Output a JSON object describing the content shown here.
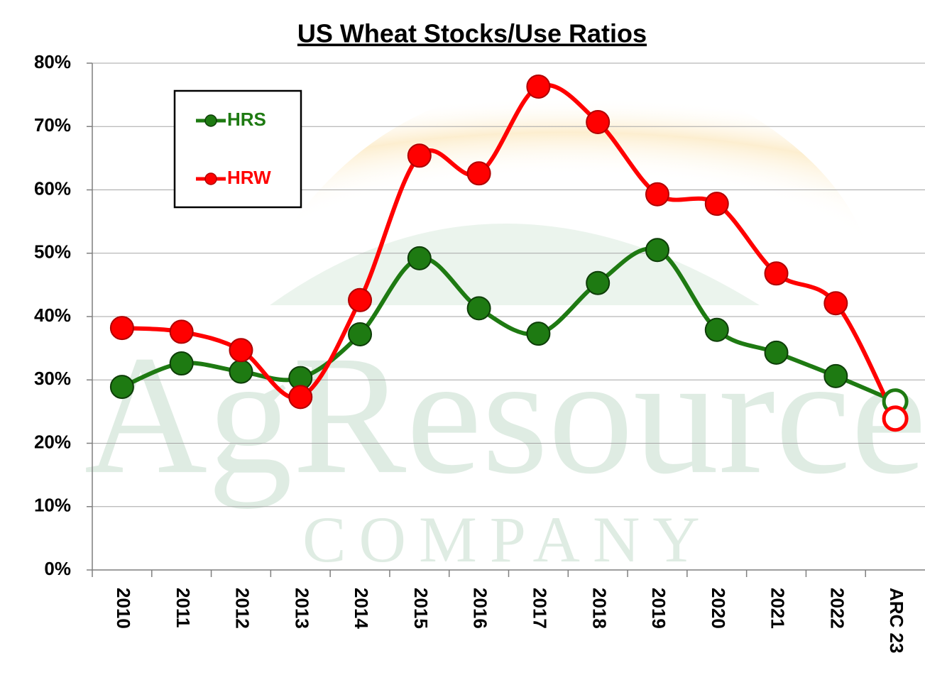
{
  "chart_data": {
    "type": "line",
    "title": "US Wheat Stocks/Use Ratios",
    "watermark": [
      "AgResource",
      "COMPANY"
    ],
    "categories": [
      "2010",
      "2011",
      "2012",
      "2013",
      "2014",
      "2015",
      "2016",
      "2017",
      "2018",
      "2019",
      "2020",
      "2021",
      "2022",
      "ARC 23"
    ],
    "series": [
      {
        "name": "HRS",
        "color": "#1e7a12",
        "values": [
          28.9,
          32.6,
          31.3,
          30.3,
          37.2,
          49.2,
          41.3,
          37.3,
          45.3,
          50.5,
          37.9,
          34.3,
          30.6,
          26.6
        ]
      },
      {
        "name": "HRW",
        "color": "#ff0000",
        "values": [
          38.2,
          37.6,
          34.7,
          27.3,
          42.6,
          65.4,
          62.6,
          76.3,
          70.7,
          59.3,
          57.8,
          46.8,
          42.1,
          23.9
        ]
      }
    ],
    "ylim": [
      0,
      80
    ],
    "yticks": [
      {
        "value": 0,
        "label": "0%"
      },
      {
        "value": 10,
        "label": "10%"
      },
      {
        "value": 20,
        "label": "20%"
      },
      {
        "value": 30,
        "label": "30%"
      },
      {
        "value": 40,
        "label": "40%"
      },
      {
        "value": 50,
        "label": "50%"
      },
      {
        "value": 60,
        "label": "60%"
      },
      {
        "value": 70,
        "label": "70%"
      },
      {
        "value": 80,
        "label": "80%"
      }
    ],
    "grid": true,
    "legend": "upper left"
  }
}
